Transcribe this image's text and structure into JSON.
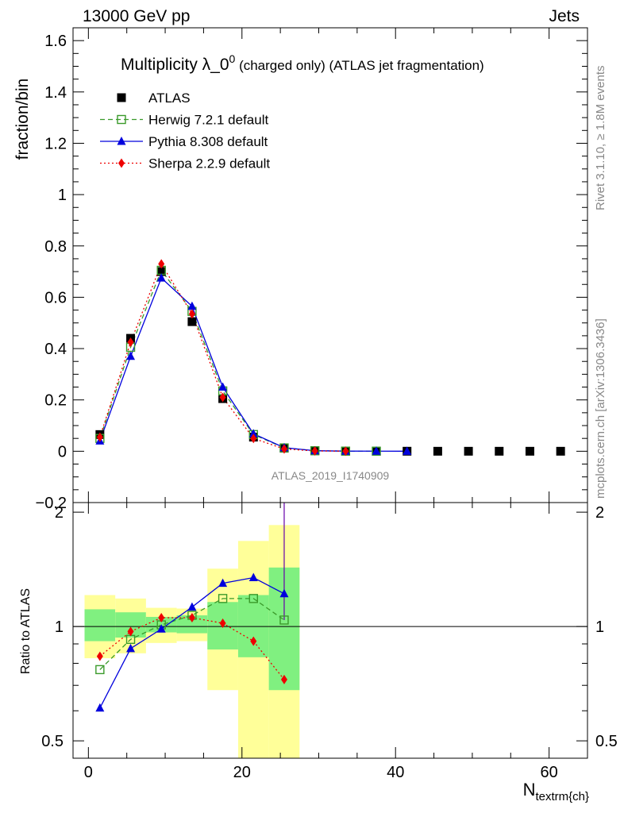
{
  "header": {
    "left": "13000 GeV pp",
    "right": "Jets"
  },
  "side_labels": {
    "rivet": "Rivet 3.1.10, ≥ 1.8M events",
    "mcplots": "mcplots.cern.ch [arXiv:1306.3436]"
  },
  "watermark": "ATLAS_2019_I1740909",
  "chart_data": [
    {
      "type": "scatter",
      "panel": "main",
      "title": "Multiplicity λ_0^0 (charged only) (ATLAS jet fragmentation)",
      "title_parts": {
        "main": "Multiplicity λ_0",
        "sup": "0",
        "rest": " (charged only) (ATLAS jet fragmentation)"
      },
      "ylabel": "fraction/bin",
      "xlabel": "N_textrm{ch}",
      "xlabel_parts": {
        "main": "N",
        "sub": "textrm{ch}"
      },
      "xlim": [
        -2,
        65
      ],
      "ylim": [
        -0.2,
        1.65
      ],
      "y_ticks": [
        -0.2,
        0,
        0.2,
        0.4,
        0.6,
        0.8,
        1,
        1.2,
        1.4,
        1.6
      ],
      "y_tick_labels": [
        "−0.2",
        "0",
        "0.2",
        "0.4",
        "0.6",
        "0.8",
        "1",
        "1.2",
        "1.4",
        "1.6"
      ],
      "legend_position": "top-left",
      "series": [
        {
          "name": "ATLAS",
          "color": "#000000",
          "marker": "square-filled",
          "line": "none",
          "x": [
            1.5,
            5.5,
            9.5,
            13.5,
            17.5,
            21.5,
            25.5,
            29.5,
            33.5,
            37.5,
            41.5,
            45.5,
            49.5,
            53.5,
            57.5,
            61.5
          ],
          "y": [
            0.065,
            0.44,
            0.7,
            0.505,
            0.205,
            0.055,
            0.012,
            0.002,
            0.0005,
            0.0002,
            0.0001,
            0,
            0,
            0,
            0,
            0
          ]
        },
        {
          "name": "Herwig 7.2.1 default",
          "color": "#3a9a2a",
          "marker": "square-open",
          "line": "dashed",
          "x": [
            1.5,
            5.5,
            9.5,
            13.5,
            17.5,
            21.5,
            25.5,
            29.5,
            33.5,
            37.5
          ],
          "y": [
            0.05,
            0.405,
            0.705,
            0.545,
            0.235,
            0.065,
            0.013,
            0.002,
            0.0005,
            0.0002
          ]
        },
        {
          "name": "Pythia 8.308 default",
          "color": "#0000dd",
          "marker": "triangle-filled",
          "line": "solid",
          "x": [
            1.5,
            5.5,
            9.5,
            13.5,
            17.5,
            21.5,
            25.5,
            29.5,
            33.5,
            37.5,
            41.5
          ],
          "y": [
            0.04,
            0.37,
            0.675,
            0.565,
            0.25,
            0.068,
            0.014,
            0.002,
            0.0005,
            0.0002,
            0.0001
          ]
        },
        {
          "name": "Sherpa 2.2.9 default",
          "color": "#ee0000",
          "marker": "diamond-filled",
          "line": "dotted",
          "x": [
            1.5,
            5.5,
            9.5,
            13.5,
            17.5,
            21.5,
            25.5,
            29.5,
            33.5
          ],
          "y": [
            0.055,
            0.425,
            0.73,
            0.535,
            0.21,
            0.05,
            0.009,
            0.001,
            0.0003
          ]
        }
      ]
    },
    {
      "type": "line",
      "panel": "ratio",
      "ylabel": "Ratio to ATLAS",
      "ylim": [
        0.45,
        2.12
      ],
      "log_y": true,
      "xlim": [
        -2,
        65
      ],
      "x_ticks": [
        0,
        20,
        40,
        60
      ],
      "x_tick_labels": [
        "0",
        "20",
        "40",
        "60"
      ],
      "y_tick_labels_left": [
        "0.5",
        "1",
        "2"
      ],
      "y_tick_labels_right": [
        "0.5",
        "1",
        "2"
      ],
      "reference_line": 1,
      "uncertainty_bands": [
        {
          "x": [
            -0.5,
            3.5
          ],
          "inner": [
            0.915,
            1.11
          ],
          "outer": [
            0.825,
            1.21
          ]
        },
        {
          "x": [
            3.5,
            7.5
          ],
          "inner": [
            0.935,
            1.09
          ],
          "outer": [
            0.85,
            1.185
          ]
        },
        {
          "x": [
            7.5,
            11.5
          ],
          "inner": [
            0.965,
            1.06
          ],
          "outer": [
            0.905,
            1.12
          ]
        },
        {
          "x": [
            11.5,
            15.5
          ],
          "inner": [
            0.96,
            1.07
          ],
          "outer": [
            0.915,
            1.115
          ]
        },
        {
          "x": [
            15.5,
            19.5
          ],
          "inner": [
            0.87,
            1.16
          ],
          "outer": [
            0.68,
            1.42
          ]
        },
        {
          "x": [
            19.5,
            23.5
          ],
          "inner": [
            0.83,
            1.21
          ],
          "outer": [
            0.4,
            1.68
          ]
        },
        {
          "x": [
            23.5,
            27.5
          ],
          "inner": [
            0.68,
            1.43
          ],
          "outer": [
            0.3,
            1.85
          ]
        }
      ],
      "series": [
        {
          "name": "Herwig 7.2.1 default",
          "color": "#3a9a2a",
          "marker": "square-open",
          "line": "dashed",
          "x": [
            1.5,
            5.5,
            9.5,
            13.5,
            17.5,
            21.5,
            25.5
          ],
          "y": [
            0.77,
            0.925,
            1.01,
            1.07,
            1.185,
            1.185,
            1.04
          ]
        },
        {
          "name": "Pythia 8.308 default",
          "color": "#0000dd",
          "marker": "triangle-filled",
          "line": "solid",
          "x": [
            1.5,
            5.5,
            9.5,
            13.5,
            17.5,
            21.5,
            25.5
          ],
          "y": [
            0.61,
            0.875,
            0.985,
            1.125,
            1.3,
            1.345,
            1.22
          ]
        },
        {
          "name": "Sherpa 2.2.9 default",
          "color": "#ee0000",
          "marker": "diamond-filled",
          "line": "dotted",
          "x": [
            1.5,
            5.5,
            9.5,
            13.5,
            17.5,
            21.5,
            25.5
          ],
          "y": [
            0.835,
            0.97,
            1.055,
            1.055,
            1.02,
            0.915,
            0.725
          ]
        }
      ]
    }
  ],
  "colors": {
    "band_inner": "#80f080",
    "band_outer": "#ffff99",
    "error_line": "#6600aa"
  }
}
